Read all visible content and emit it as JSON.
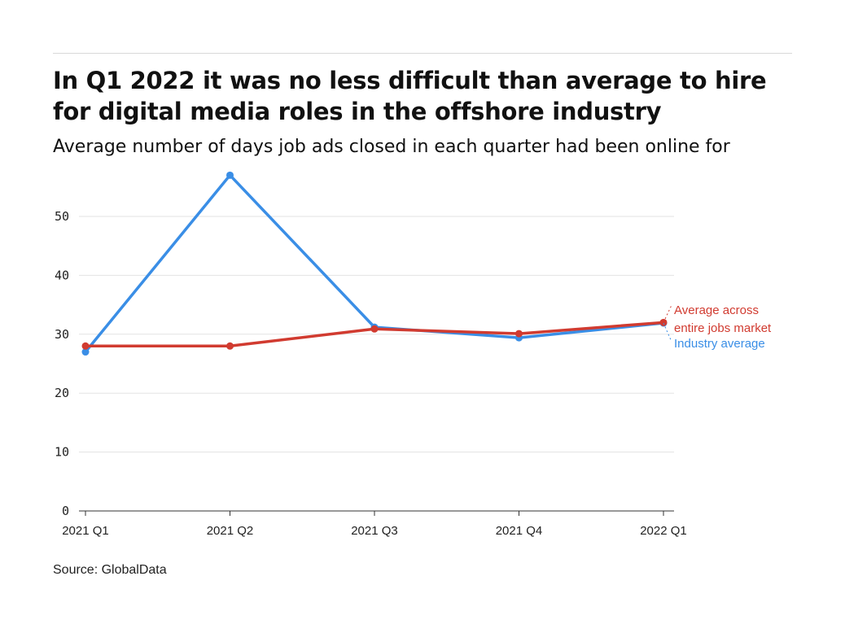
{
  "title": "In Q1 2022 it was no less difficult than average to hire for digital media roles in the offshore industry",
  "subtitle": "Average number of days job ads closed in each quarter had been online for",
  "source": "Source: GlobalData",
  "chart_data": {
    "type": "line",
    "title": "In Q1 2022 it was no less difficult than average to hire for digital media roles in the offshore industry",
    "subtitle": "Average number of days job ads closed in each quarter had been online for",
    "categories": [
      "2021 Q1",
      "2021 Q2",
      "2021 Q3",
      "2021 Q4",
      "2022 Q1"
    ],
    "yticks": [
      0,
      10,
      20,
      30,
      40,
      50
    ],
    "ylim": [
      0,
      57
    ],
    "grid": true,
    "legend": "right-end labels",
    "series": [
      {
        "name": "Industry average",
        "color": "#3a8ee6",
        "values": [
          27,
          57,
          31.2,
          29.4,
          31.9
        ]
      },
      {
        "name": "Average across entire jobs market",
        "label_lines": [
          "Average across",
          "entire jobs market"
        ],
        "color": "#d13b30",
        "values": [
          28,
          28,
          30.9,
          30.1,
          32
        ]
      }
    ]
  }
}
